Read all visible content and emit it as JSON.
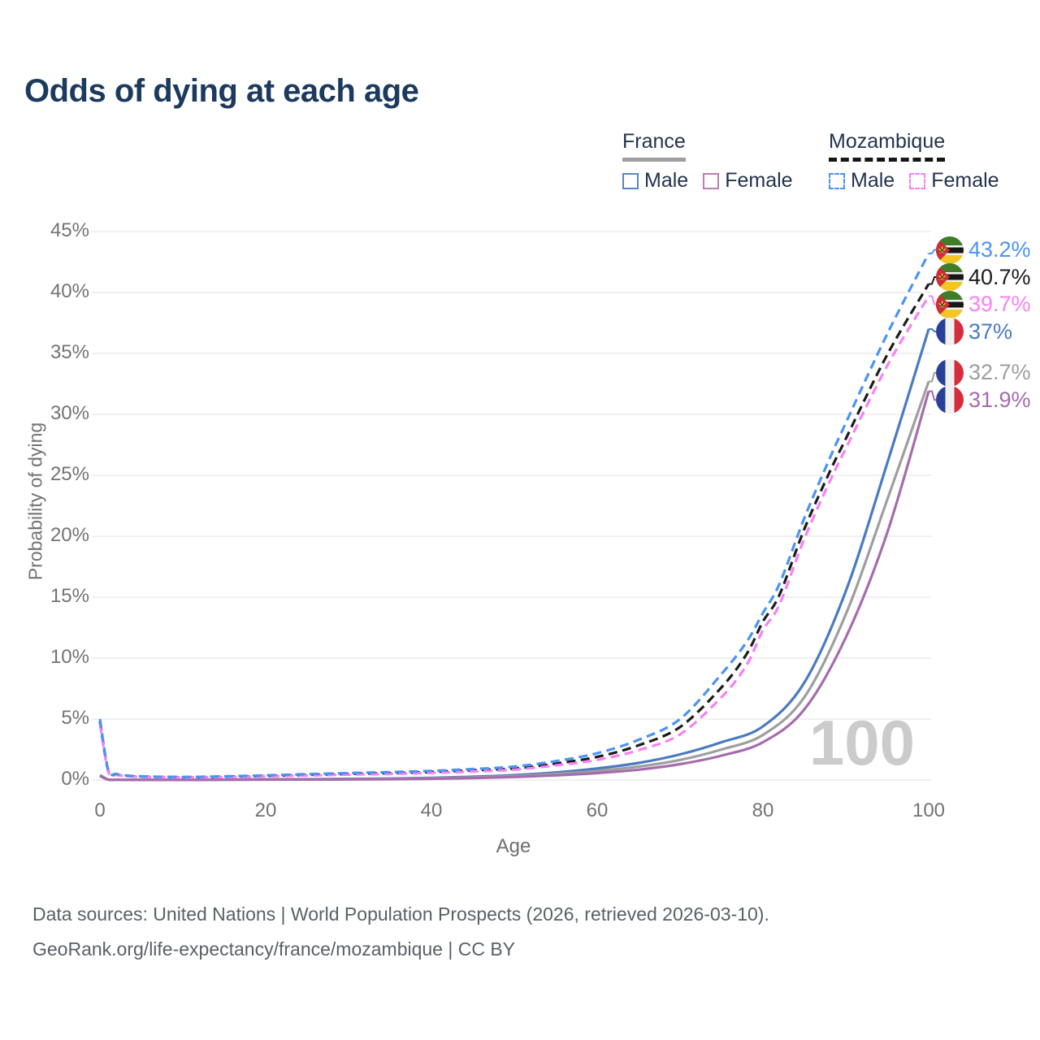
{
  "page": {
    "title": "Odds of dying at each age"
  },
  "legend": {
    "groups": [
      {
        "label": "France",
        "underline": "solid",
        "underline_color": "#9e9e9e",
        "items": [
          {
            "label": "Male",
            "color": "#5b84c4",
            "dashed": false
          },
          {
            "label": "Female",
            "color": "#bd7cb5",
            "dashed": false
          }
        ]
      },
      {
        "label": "Mozambique",
        "underline": "dashed",
        "underline_color": "#161616",
        "items": [
          {
            "label": "Male",
            "color": "#4b93f6",
            "dashed": true
          },
          {
            "label": "Female",
            "color": "#f980f4",
            "dashed": true
          }
        ]
      }
    ]
  },
  "chart_data": {
    "type": "line",
    "title": "Odds of dying at each age",
    "xlabel": "Age",
    "ylabel": "Probability of dying",
    "xlim": [
      0,
      100
    ],
    "ylim": [
      0,
      45
    ],
    "x_ticks": [
      0,
      20,
      40,
      60,
      80,
      100
    ],
    "y_ticks": [
      0,
      5,
      10,
      15,
      20,
      25,
      30,
      35,
      40,
      45
    ],
    "y_tick_suffix": "%",
    "grid": "horizontal",
    "legend_position": "top-right",
    "watermark": "100",
    "series": [
      {
        "name": "France Male",
        "country": "France",
        "flag": "fr",
        "color": "#4a7ac2",
        "dashed": false,
        "end_label": "37%",
        "end_value": 37.0,
        "points": [
          [
            0,
            0.4
          ],
          [
            1,
            0.04
          ],
          [
            2,
            0.02
          ],
          [
            5,
            0.01
          ],
          [
            10,
            0.01
          ],
          [
            15,
            0.03
          ],
          [
            20,
            0.06
          ],
          [
            25,
            0.07
          ],
          [
            30,
            0.09
          ],
          [
            35,
            0.12
          ],
          [
            40,
            0.18
          ],
          [
            45,
            0.27
          ],
          [
            50,
            0.4
          ],
          [
            55,
            0.62
          ],
          [
            60,
            0.95
          ],
          [
            65,
            1.4
          ],
          [
            70,
            2.1
          ],
          [
            75,
            3.1
          ],
          [
            80,
            4.4
          ],
          [
            85,
            8.0
          ],
          [
            90,
            15.5
          ],
          [
            95,
            26.0
          ],
          [
            100,
            37.0
          ]
        ]
      },
      {
        "name": "France Total",
        "country": "France",
        "flag": "fr",
        "color": "#9e9e9e",
        "dashed": false,
        "end_label": "32.7%",
        "end_value": 32.7,
        "points": [
          [
            0,
            0.37
          ],
          [
            1,
            0.035
          ],
          [
            2,
            0.018
          ],
          [
            5,
            0.009
          ],
          [
            10,
            0.009
          ],
          [
            15,
            0.025
          ],
          [
            20,
            0.045
          ],
          [
            25,
            0.055
          ],
          [
            30,
            0.07
          ],
          [
            35,
            0.1
          ],
          [
            40,
            0.14
          ],
          [
            45,
            0.21
          ],
          [
            50,
            0.32
          ],
          [
            55,
            0.5
          ],
          [
            60,
            0.75
          ],
          [
            65,
            1.1
          ],
          [
            70,
            1.65
          ],
          [
            75,
            2.5
          ],
          [
            80,
            3.7
          ],
          [
            85,
            6.8
          ],
          [
            90,
            13.6
          ],
          [
            95,
            23.0
          ],
          [
            100,
            32.7
          ]
        ]
      },
      {
        "name": "France Female",
        "country": "France",
        "flag": "fr",
        "color": "#a66bae",
        "dashed": false,
        "end_label": "31.9%",
        "end_value": 31.9,
        "points": [
          [
            0,
            0.33
          ],
          [
            1,
            0.03
          ],
          [
            2,
            0.015
          ],
          [
            5,
            0.008
          ],
          [
            10,
            0.008
          ],
          [
            15,
            0.02
          ],
          [
            20,
            0.03
          ],
          [
            25,
            0.04
          ],
          [
            30,
            0.05
          ],
          [
            35,
            0.07
          ],
          [
            40,
            0.1
          ],
          [
            45,
            0.16
          ],
          [
            50,
            0.25
          ],
          [
            55,
            0.38
          ],
          [
            60,
            0.57
          ],
          [
            65,
            0.85
          ],
          [
            70,
            1.3
          ],
          [
            75,
            2.0
          ],
          [
            80,
            3.1
          ],
          [
            85,
            5.8
          ],
          [
            90,
            11.7
          ],
          [
            95,
            20.3
          ],
          [
            100,
            31.9
          ]
        ]
      },
      {
        "name": "Mozambique Total",
        "country": "Mozambique",
        "flag": "mz",
        "color": "#1c1c1c",
        "dashed": true,
        "end_label": "40.7%",
        "end_value": 40.7,
        "points": [
          [
            0,
            4.8
          ],
          [
            1,
            0.78
          ],
          [
            2,
            0.46
          ],
          [
            3,
            0.35
          ],
          [
            5,
            0.28
          ],
          [
            10,
            0.23
          ],
          [
            15,
            0.27
          ],
          [
            20,
            0.33
          ],
          [
            25,
            0.42
          ],
          [
            30,
            0.5
          ],
          [
            35,
            0.57
          ],
          [
            40,
            0.66
          ],
          [
            45,
            0.8
          ],
          [
            50,
            0.95
          ],
          [
            55,
            1.35
          ],
          [
            60,
            1.9
          ],
          [
            65,
            2.85
          ],
          [
            70,
            4.35
          ],
          [
            75,
            7.6
          ],
          [
            78,
            10.3
          ],
          [
            80,
            13.0
          ],
          [
            82,
            15.2
          ],
          [
            85,
            20.6
          ],
          [
            88,
            25.2
          ],
          [
            90,
            28.0
          ],
          [
            95,
            34.9
          ],
          [
            100,
            40.7
          ]
        ]
      },
      {
        "name": "Mozambique Female",
        "country": "Mozambique",
        "flag": "mz",
        "color": "#f980f4",
        "dashed": true,
        "end_label": "39.7%",
        "end_value": 39.7,
        "points": [
          [
            0,
            4.6
          ],
          [
            1,
            0.72
          ],
          [
            2,
            0.42
          ],
          [
            3,
            0.33
          ],
          [
            5,
            0.26
          ],
          [
            10,
            0.21
          ],
          [
            15,
            0.24
          ],
          [
            20,
            0.3
          ],
          [
            25,
            0.37
          ],
          [
            30,
            0.44
          ],
          [
            35,
            0.5
          ],
          [
            40,
            0.58
          ],
          [
            45,
            0.7
          ],
          [
            50,
            0.85
          ],
          [
            55,
            1.2
          ],
          [
            60,
            1.65
          ],
          [
            65,
            2.45
          ],
          [
            70,
            3.75
          ],
          [
            75,
            6.8
          ],
          [
            78,
            9.4
          ],
          [
            80,
            12.3
          ],
          [
            82,
            14.4
          ],
          [
            85,
            19.8
          ],
          [
            88,
            24.4
          ],
          [
            90,
            27.2
          ],
          [
            95,
            34.0
          ],
          [
            100,
            39.7
          ]
        ]
      },
      {
        "name": "Mozambique Male",
        "country": "Mozambique",
        "flag": "mz",
        "color": "#4b93f6",
        "dashed": true,
        "end_label": "43.2%",
        "end_value": 43.2,
        "points": [
          [
            0,
            5.0
          ],
          [
            1,
            0.85
          ],
          [
            2,
            0.5
          ],
          [
            3,
            0.38
          ],
          [
            5,
            0.3
          ],
          [
            10,
            0.25
          ],
          [
            15,
            0.3
          ],
          [
            20,
            0.38
          ],
          [
            25,
            0.48
          ],
          [
            30,
            0.57
          ],
          [
            35,
            0.65
          ],
          [
            40,
            0.75
          ],
          [
            45,
            0.9
          ],
          [
            50,
            1.1
          ],
          [
            55,
            1.55
          ],
          [
            60,
            2.2
          ],
          [
            65,
            3.3
          ],
          [
            70,
            5.0
          ],
          [
            75,
            8.7
          ],
          [
            78,
            11.3
          ],
          [
            80,
            13.7
          ],
          [
            82,
            16.1
          ],
          [
            85,
            21.5
          ],
          [
            88,
            26.3
          ],
          [
            90,
            29.3
          ],
          [
            95,
            36.6
          ],
          [
            100,
            43.2
          ]
        ]
      }
    ]
  },
  "footer": {
    "line1": "Data sources: United Nations | World Population Prospects (2026, retrieved 2026-03-10).",
    "line2": "GeoRank.org/life-expectancy/france/mozambique | CC BY"
  }
}
